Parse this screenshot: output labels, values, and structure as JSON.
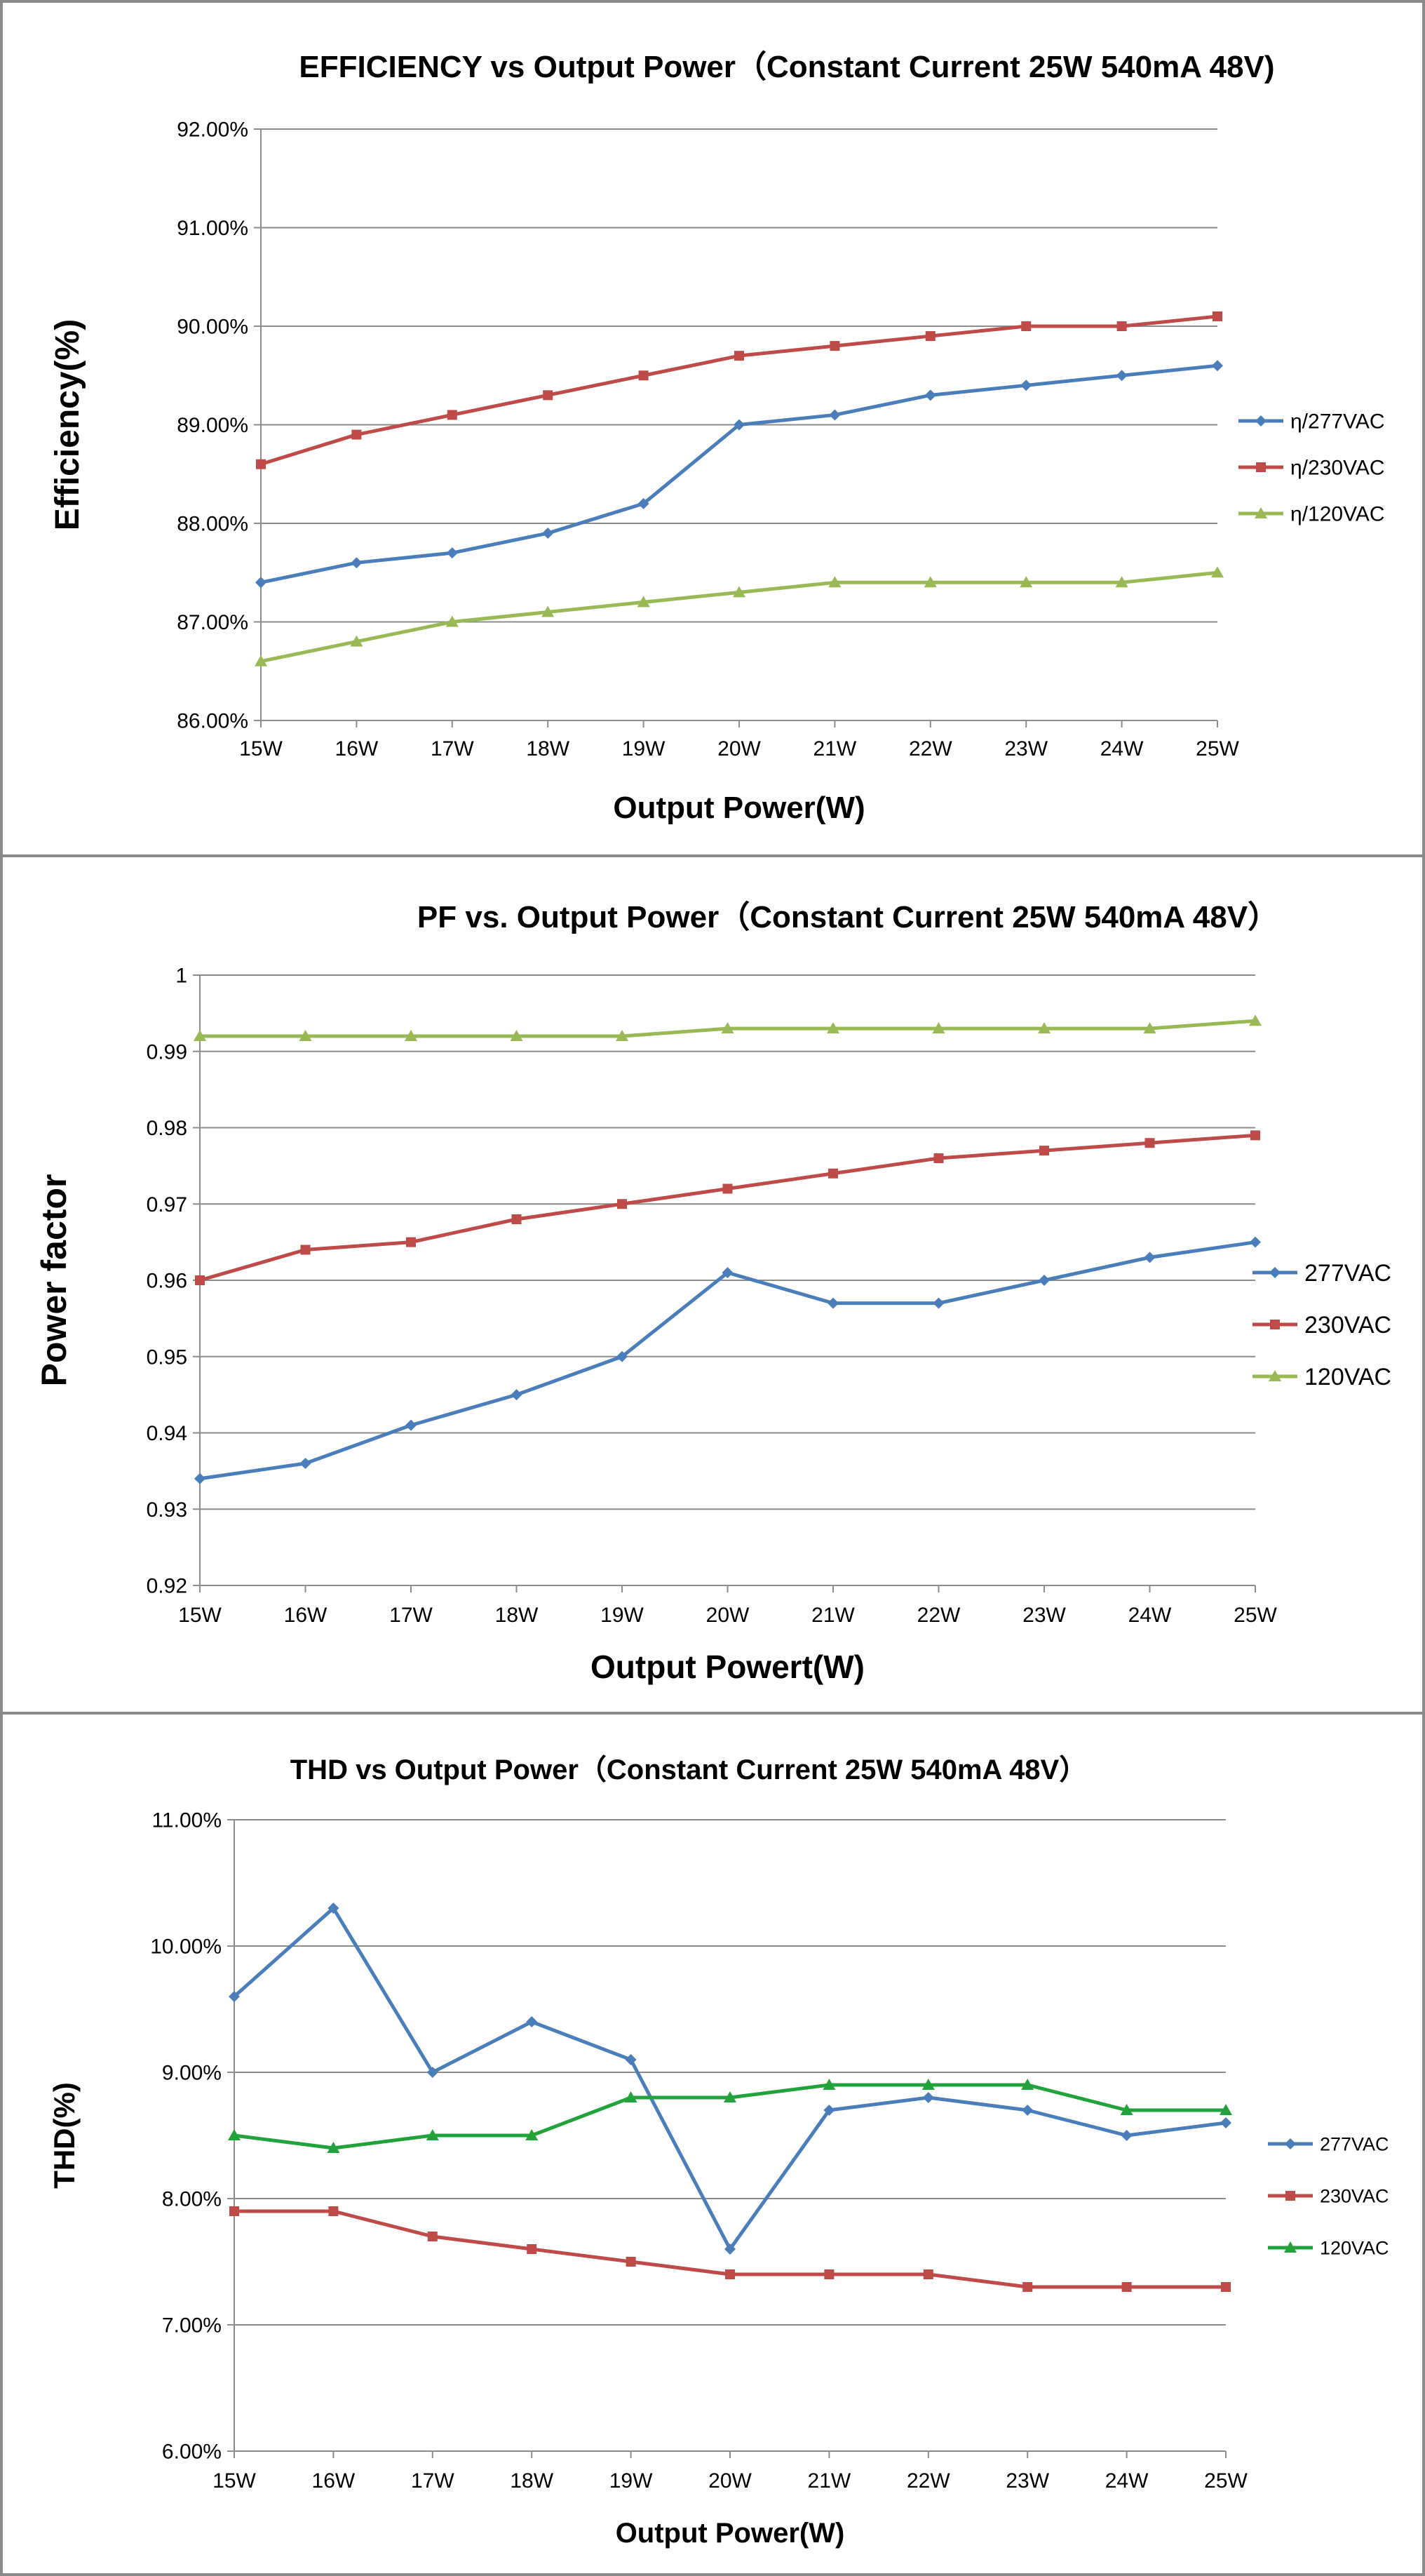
{
  "chart_data": [
    {
      "type": "line",
      "title": "EFFICIENCY vs Output Power（Constant Current 25W 540mA 48V)",
      "xlabel": "Output Power(W)",
      "ylabel": "Efficiency(%)",
      "categories": [
        "15W",
        "16W",
        "17W",
        "18W",
        "19W",
        "20W",
        "21W",
        "22W",
        "23W",
        "24W",
        "25W"
      ],
      "ylim": [
        86,
        92
      ],
      "yticks": [
        "86.00%",
        "87.00%",
        "88.00%",
        "89.00%",
        "90.00%",
        "91.00%",
        "92.00%"
      ],
      "ytick_values": [
        86,
        87,
        88,
        89,
        90,
        91,
        92
      ],
      "grid": true,
      "legend_position": "right",
      "series": [
        {
          "name": "η/277VAC",
          "color": "#4a7ebb",
          "marker": "diamond",
          "values": [
            87.4,
            87.6,
            87.7,
            87.9,
            88.2,
            89.0,
            89.1,
            89.3,
            89.4,
            89.5,
            89.6
          ]
        },
        {
          "name": "η/230VAC",
          "color": "#be4b48",
          "marker": "square",
          "values": [
            88.6,
            88.9,
            89.1,
            89.3,
            89.5,
            89.7,
            89.8,
            89.9,
            90.0,
            90.0,
            90.1
          ]
        },
        {
          "name": "η/120VAC",
          "color": "#98b954",
          "marker": "triangle",
          "values": [
            86.6,
            86.8,
            87.0,
            87.1,
            87.2,
            87.3,
            87.4,
            87.4,
            87.4,
            87.4,
            87.5
          ]
        }
      ]
    },
    {
      "type": "line",
      "title": "PF vs. Output Power（Constant Current 25W 540mA 48V）",
      "xlabel": "Output Powert(W)",
      "ylabel": "Power factor",
      "categories": [
        "15W",
        "16W",
        "17W",
        "18W",
        "19W",
        "20W",
        "21W",
        "22W",
        "23W",
        "24W",
        "25W"
      ],
      "ylim": [
        0.92,
        1
      ],
      "yticks": [
        "0.92",
        "0.93",
        "0.94",
        "0.95",
        "0.96",
        "0.97",
        "0.98",
        "0.99",
        "1"
      ],
      "ytick_values": [
        0.92,
        0.93,
        0.94,
        0.95,
        0.96,
        0.97,
        0.98,
        0.99,
        1
      ],
      "grid": true,
      "legend_position": "right",
      "series": [
        {
          "name": "277VAC",
          "color": "#4a7ebb",
          "marker": "diamond",
          "values": [
            0.934,
            0.936,
            0.941,
            0.945,
            0.95,
            0.961,
            0.957,
            0.957,
            0.96,
            0.963,
            0.965
          ]
        },
        {
          "name": "230VAC",
          "color": "#be4b48",
          "marker": "square",
          "values": [
            0.96,
            0.964,
            0.965,
            0.968,
            0.97,
            0.972,
            0.974,
            0.976,
            0.977,
            0.978,
            0.979
          ]
        },
        {
          "name": "120VAC",
          "color": "#98b954",
          "marker": "triangle",
          "values": [
            0.992,
            0.992,
            0.992,
            0.992,
            0.992,
            0.993,
            0.993,
            0.993,
            0.993,
            0.993,
            0.994
          ]
        }
      ]
    },
    {
      "type": "line",
      "title": "THD vs Output Power（Constant Current 25W  540mA 48V）",
      "xlabel": "Output Power(W)",
      "ylabel": "THD(%)",
      "categories": [
        "15W",
        "16W",
        "17W",
        "18W",
        "19W",
        "20W",
        "21W",
        "22W",
        "23W",
        "24W",
        "25W"
      ],
      "ylim": [
        6,
        11
      ],
      "yticks": [
        "6.00%",
        "7.00%",
        "8.00%",
        "9.00%",
        "10.00%",
        "11.00%"
      ],
      "ytick_values": [
        6,
        7,
        8,
        9,
        10,
        11
      ],
      "grid": true,
      "legend_position": "right",
      "series": [
        {
          "name": "277VAC",
          "color": "#4a7ebb",
          "marker": "diamond",
          "values": [
            9.6,
            10.3,
            9.0,
            9.4,
            9.1,
            7.6,
            8.7,
            8.8,
            8.7,
            8.5,
            8.6
          ]
        },
        {
          "name": "230VAC",
          "color": "#be4b48",
          "marker": "square",
          "values": [
            7.9,
            7.9,
            7.7,
            7.6,
            7.5,
            7.4,
            7.4,
            7.4,
            7.3,
            7.3,
            7.3
          ]
        },
        {
          "name": "120VAC",
          "color": "#22a23a",
          "marker": "triangle",
          "values": [
            8.5,
            8.4,
            8.5,
            8.5,
            8.8,
            8.8,
            8.9,
            8.9,
            8.9,
            8.7,
            8.7
          ]
        }
      ]
    }
  ]
}
